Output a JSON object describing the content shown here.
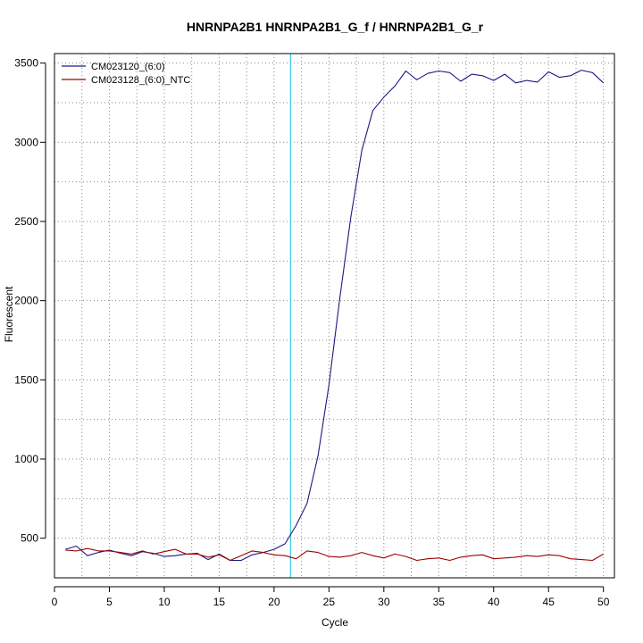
{
  "chart_data": {
    "type": "line",
    "title": "HNRNPA2B1  HNRNPA2B1_G_f / HNRNPA2B1_G_r",
    "xlabel": "Cycle",
    "ylabel": "Fluorescent",
    "xlim": [
      0,
      51
    ],
    "ylim": [
      250,
      3560
    ],
    "x_ticks": [
      0,
      5,
      10,
      15,
      20,
      25,
      30,
      35,
      40,
      45,
      50
    ],
    "y_ticks": [
      500,
      1000,
      1500,
      2000,
      2500,
      3000,
      3500
    ],
    "grid": "dotted",
    "legend_position": "top-left",
    "threshold_cycle": 21.5,
    "threshold_color": "#33ccdd",
    "x": [
      1,
      2,
      3,
      4,
      5,
      6,
      7,
      8,
      9,
      10,
      11,
      12,
      13,
      14,
      15,
      16,
      17,
      18,
      19,
      20,
      21,
      22,
      23,
      24,
      25,
      26,
      27,
      28,
      29,
      30,
      31,
      32,
      33,
      34,
      35,
      36,
      37,
      38,
      39,
      40,
      41,
      42,
      43,
      44,
      45,
      46,
      47,
      48,
      49,
      50
    ],
    "series": [
      {
        "name": "CM023120_(6:0)",
        "color": "#1a1a80",
        "values": [
          430,
          450,
          390,
          410,
          425,
          405,
          390,
          415,
          405,
          385,
          390,
          400,
          405,
          365,
          400,
          360,
          360,
          395,
          410,
          430,
          465,
          580,
          720,
          1020,
          1470,
          2020,
          2530,
          2950,
          3200,
          3285,
          3355,
          3450,
          3395,
          3435,
          3450,
          3440,
          3385,
          3430,
          3420,
          3390,
          3430,
          3375,
          3390,
          3380,
          3445,
          3410,
          3420,
          3455,
          3440,
          3375
        ]
      },
      {
        "name": "CM023128_(6:0)_NTC",
        "color": "#a00000",
        "values": [
          425,
          420,
          435,
          420,
          420,
          410,
          400,
          420,
          400,
          415,
          430,
          400,
          400,
          380,
          395,
          360,
          390,
          420,
          410,
          395,
          390,
          370,
          420,
          410,
          385,
          380,
          390,
          410,
          390,
          375,
          400,
          385,
          360,
          370,
          375,
          360,
          380,
          390,
          395,
          370,
          375,
          380,
          390,
          385,
          395,
          390,
          370,
          365,
          360,
          400
        ]
      }
    ]
  }
}
